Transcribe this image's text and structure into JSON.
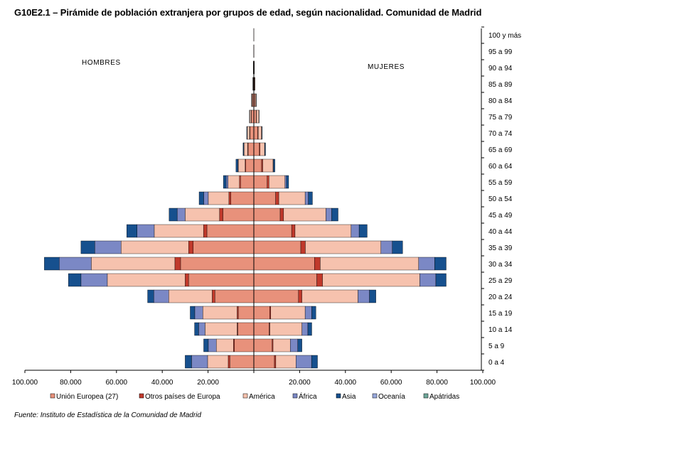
{
  "title": "G10E2.1 – Pirámide de población extranjera por grupos de edad, según nacionalidad. Comunidad de Madrid",
  "source": "Fuente: Instituto de Estadística de la Comunidad de Madrid",
  "chart_data": {
    "type": "bar",
    "orientation": "horizontal-population-pyramid",
    "left_label": "HOMBRES",
    "right_label": "MUJERES",
    "x_tick_labels": [
      "100.000",
      "80.000",
      "60.000",
      "40.000",
      "20.000",
      "",
      "20.000",
      "40.000",
      "60.000",
      "80.000",
      "100.000"
    ],
    "xlim": [
      -100000,
      100000
    ],
    "legend_position": "bottom",
    "categories": [
      "0 a 4",
      "5 a 9",
      "10 a 14",
      "15 a 19",
      "20 a 24",
      "25 a 29",
      "30 a 34",
      "35 a 39",
      "40 a 44",
      "45 a 49",
      "50 a 54",
      "55 a 59",
      "60 a 64",
      "65 a 69",
      "70 a 74",
      "75 a 79",
      "80 a 84",
      "85 a 89",
      "90 a 94",
      "95 a 99",
      "100 y más"
    ],
    "series": [
      {
        "name": "Unión Europea (27)",
        "color": "#E8917B",
        "men": [
          10500,
          8500,
          7000,
          6800,
          17000,
          28500,
          32000,
          26500,
          20500,
          13500,
          10000,
          5800,
          3500,
          2500,
          1700,
          1100,
          600,
          300,
          150,
          50,
          20
        ],
        "women": [
          9000,
          8000,
          6700,
          6900,
          19500,
          27500,
          26500,
          20500,
          16500,
          11500,
          9500,
          5800,
          3400,
          2400,
          1700,
          1100,
          600,
          300,
          150,
          50,
          20
        ]
      },
      {
        "name": "Otros países de Europa",
        "color": "#C0392B",
        "men": [
          700,
          400,
          300,
          500,
          1200,
          1500,
          2500,
          2000,
          1500,
          1500,
          900,
          500,
          300,
          200,
          150,
          100,
          50,
          30,
          10,
          0,
          0
        ],
        "women": [
          600,
          400,
          300,
          500,
          1500,
          2500,
          2500,
          2000,
          1500,
          1500,
          1400,
          800,
          500,
          300,
          200,
          100,
          50,
          30,
          10,
          0,
          0
        ]
      },
      {
        "name": "América",
        "color": "#F6C2AE",
        "men": [
          9000,
          7500,
          14000,
          15000,
          19000,
          34000,
          36500,
          29500,
          21500,
          15000,
          9000,
          5000,
          3000,
          1600,
          1000,
          600,
          300,
          100,
          20,
          0,
          0
        ],
        "women": [
          8800,
          7500,
          14000,
          15000,
          24500,
          42500,
          43000,
          33000,
          24500,
          18500,
          11500,
          7000,
          4500,
          2000,
          1500,
          1000,
          400,
          200,
          50,
          0,
          0
        ]
      },
      {
        "name": "África",
        "color": "#7B88C5",
        "men": [
          7000,
          3500,
          2800,
          3500,
          6500,
          11500,
          14000,
          11500,
          7500,
          3500,
          2000,
          800,
          200,
          100,
          50,
          20,
          0,
          0,
          0,
          0,
          0
        ],
        "women": [
          6800,
          3300,
          2600,
          2900,
          5000,
          7000,
          7000,
          5000,
          3500,
          2500,
          1400,
          600,
          200,
          100,
          50,
          20,
          0,
          0,
          0,
          0,
          0
        ]
      },
      {
        "name": "Asia",
        "color": "#16508E",
        "men": [
          2800,
          2000,
          1800,
          2000,
          2700,
          5500,
          6500,
          6000,
          4500,
          3500,
          2000,
          1200,
          800,
          300,
          200,
          100,
          50,
          0,
          0,
          0,
          0
        ],
        "women": [
          2600,
          1800,
          1700,
          1800,
          2800,
          4500,
          5000,
          4500,
          3500,
          2800,
          1800,
          1000,
          600,
          300,
          200,
          100,
          50,
          0,
          0,
          0,
          0
        ]
      },
      {
        "name": "Oceanía",
        "color": "#98A8DC",
        "men": [
          0,
          0,
          0,
          0,
          0,
          0,
          0,
          0,
          0,
          0,
          0,
          0,
          0,
          0,
          0,
          0,
          0,
          0,
          0,
          0,
          0
        ],
        "women": [
          0,
          0,
          0,
          0,
          0,
          0,
          0,
          0,
          0,
          0,
          0,
          0,
          0,
          0,
          0,
          0,
          0,
          0,
          0,
          0,
          0
        ]
      },
      {
        "name": "Apátridas",
        "color": "#6FA89A",
        "men": [
          0,
          0,
          0,
          0,
          0,
          0,
          0,
          0,
          0,
          0,
          0,
          0,
          0,
          0,
          0,
          0,
          0,
          0,
          0,
          0,
          0
        ],
        "women": [
          0,
          0,
          0,
          0,
          0,
          0,
          0,
          0,
          0,
          0,
          0,
          0,
          0,
          0,
          0,
          0,
          0,
          0,
          0,
          0,
          0
        ]
      }
    ]
  }
}
